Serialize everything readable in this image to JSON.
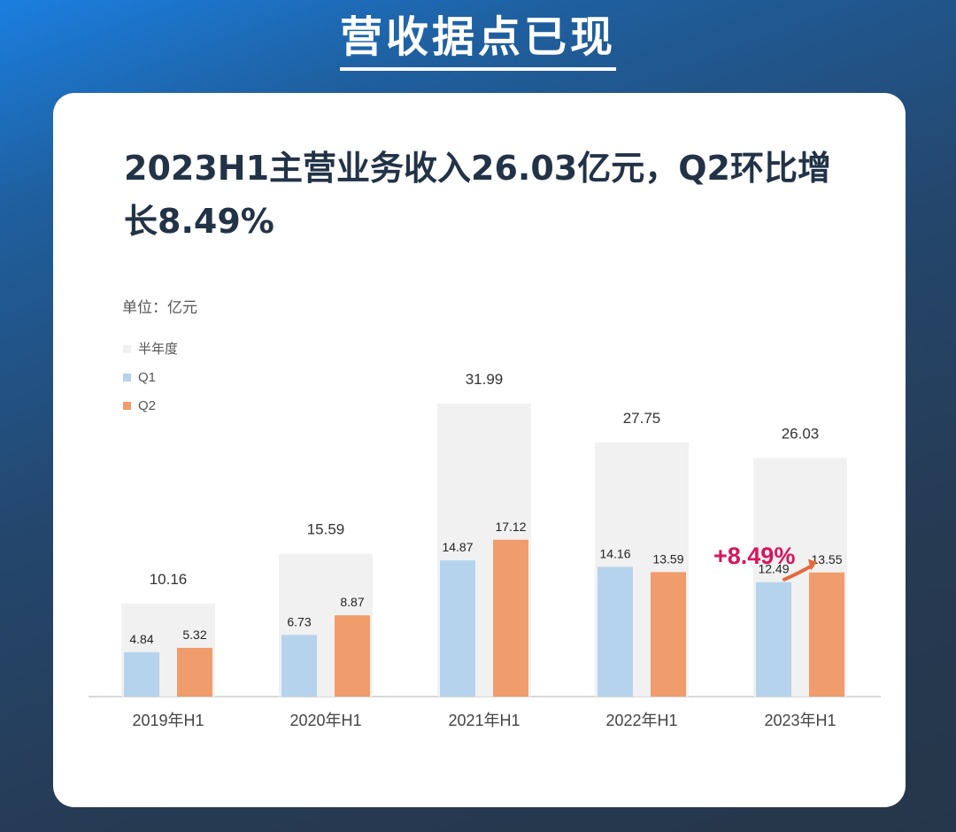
{
  "page": {
    "title": "营收据点已现"
  },
  "card": {
    "headline": "2023H1主营业务收入26.03亿元，Q2环比增长8.49%"
  },
  "chart_data": {
    "type": "bar",
    "unit_label": "单位：亿元",
    "categories": [
      "2019年H1",
      "2020年H1",
      "2021年H1",
      "2022年H1",
      "2023年H1"
    ],
    "series": [
      {
        "name": "半年度",
        "values": [
          10.16,
          15.59,
          31.99,
          27.75,
          26.03
        ],
        "color": "#f1f1f1",
        "labels": [
          "10.16",
          "15.59",
          "31.99",
          "27.75",
          "26.03"
        ]
      },
      {
        "name": "Q1",
        "values": [
          4.84,
          6.73,
          14.87,
          14.16,
          12.49
        ],
        "color": "#b5d3ed",
        "labels": [
          "4.84",
          "6.73",
          "14.87",
          "14.16",
          "12.49"
        ]
      },
      {
        "name": "Q2",
        "values": [
          5.32,
          8.87,
          17.12,
          13.59,
          13.55
        ],
        "color": "#f09c6c",
        "labels": [
          "5.32",
          "8.87",
          "17.12",
          "13.59",
          "13.55"
        ]
      }
    ],
    "annotation": {
      "text": "+8.49%",
      "color": "#d6165c"
    },
    "legend_placement": "top-left",
    "grid": false
  }
}
